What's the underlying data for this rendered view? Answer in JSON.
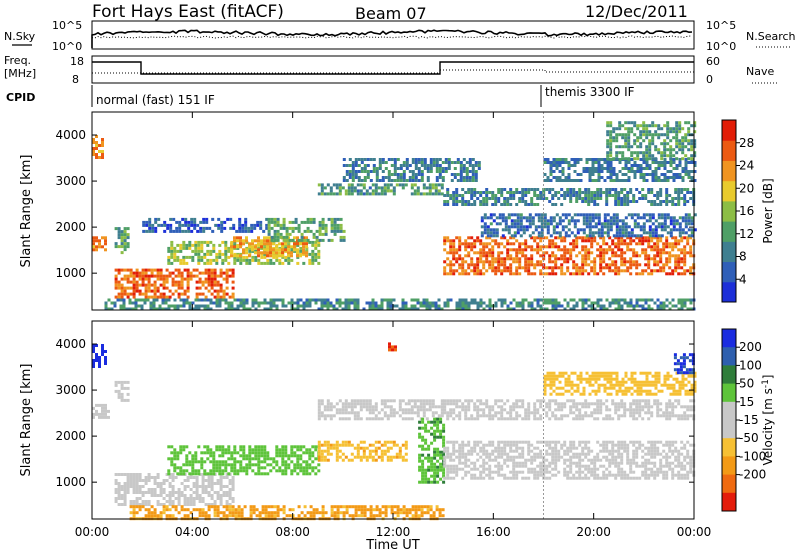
{
  "header": {
    "station": "Fort Hays East (fitACF)",
    "beam": "Beam 07",
    "date": "12/Dec/2011"
  },
  "top_panels": {
    "noise": {
      "left_label": "N.Sky",
      "right_label": "N.Search",
      "tick_top": "10^5",
      "tick_bottom": "10^0"
    },
    "freq": {
      "left_label_line1": "Freq.",
      "left_label_line2": "[MHz]",
      "left_tick_top": "18",
      "left_tick_bottom": "8",
      "right_label": "Nave",
      "right_tick_top": "60",
      "right_tick_bottom": "0"
    },
    "cpid": {
      "label": "CPID",
      "modes": [
        "normal (fast) 151 IF",
        "themis 3300 IF"
      ]
    }
  },
  "x_axis": {
    "title": "Time UT",
    "ticks": [
      "00:00",
      "04:00",
      "08:00",
      "12:00",
      "16:00",
      "20:00",
      "00:00"
    ]
  },
  "colors": {
    "power_scale": [
      "#1c2fd8",
      "#2f5fb8",
      "#3f7f90",
      "#4f9f66",
      "#8cbd45",
      "#e8ca2d",
      "#f09420",
      "#ec5a12",
      "#e21d07"
    ],
    "velocity_scale": [
      "#1a2ce0",
      "#2e5fae",
      "#2f7d3a",
      "#5ec43a",
      "#c8c8c8",
      "#c8c8c8",
      "#f6c034",
      "#f39a16",
      "#ef6a10",
      "#e41c0b"
    ]
  },
  "chart_data": [
    {
      "type": "heatmap",
      "title": "",
      "xlabel": "Time UT",
      "ylabel": "Slant Range [km]",
      "xlim": [
        0,
        24
      ],
      "ylim": [
        200,
        4500
      ],
      "yticks": [
        1000,
        2000,
        3000,
        4000
      ],
      "colorbar": {
        "label": "Power [dB]",
        "ticks": [
          4,
          8,
          12,
          16,
          20,
          24,
          28
        ],
        "range": [
          0,
          32
        ]
      },
      "bands": [
        {
          "t0": 0.0,
          "t1": 0.4,
          "r0": 3500,
          "r1": 4000,
          "v": 24
        },
        {
          "t0": 0.0,
          "t1": 0.5,
          "r0": 1500,
          "r1": 1800,
          "v": 24
        },
        {
          "t0": 0.9,
          "t1": 1.4,
          "r0": 1400,
          "r1": 2000,
          "v": 12
        },
        {
          "t0": 0.9,
          "t1": 5.6,
          "r0": 500,
          "r1": 1100,
          "v": 26
        },
        {
          "t0": 2.0,
          "t1": 7.0,
          "r0": 1900,
          "r1": 2200,
          "v": 6
        },
        {
          "t0": 3.0,
          "t1": 9.0,
          "r0": 1200,
          "r1": 1700,
          "v": 16
        },
        {
          "t0": 5.5,
          "t1": 8.5,
          "r0": 1400,
          "r1": 1800,
          "v": 22
        },
        {
          "t0": 7.0,
          "t1": 10.0,
          "r0": 1700,
          "r1": 2200,
          "v": 13
        },
        {
          "t0": 9.0,
          "t1": 14.0,
          "r0": 2700,
          "r1": 2950,
          "v": 11
        },
        {
          "t0": 10.0,
          "t1": 15.5,
          "r0": 3000,
          "r1": 3500,
          "v": 9
        },
        {
          "t0": 14.0,
          "t1": 24.0,
          "r0": 1000,
          "r1": 1800,
          "v": 26
        },
        {
          "t0": 14.0,
          "t1": 24.0,
          "r0": 2500,
          "r1": 2850,
          "v": 9
        },
        {
          "t0": 15.5,
          "t1": 24.0,
          "r0": 1800,
          "r1": 2300,
          "v": 7
        },
        {
          "t0": 18.0,
          "t1": 24.0,
          "r0": 3000,
          "r1": 3500,
          "v": 8
        },
        {
          "t0": 20.5,
          "t1": 24.0,
          "r0": 3500,
          "r1": 4300,
          "v": 12
        },
        {
          "t0": 0.5,
          "t1": 24.0,
          "r0": 200,
          "r1": 450,
          "v": 10
        }
      ]
    },
    {
      "type": "heatmap",
      "title": "",
      "xlabel": "Time UT",
      "ylabel": "Slant Range [km]",
      "xlim": [
        0,
        24
      ],
      "ylim": [
        200,
        4500
      ],
      "yticks": [
        1000,
        2000,
        3000,
        4000
      ],
      "colorbar": {
        "label": "Velocity [m s^-1]",
        "ticks": [
          200,
          100,
          50,
          15,
          -15,
          -50,
          -100,
          -200
        ]
      },
      "bands": [
        {
          "t0": 0.0,
          "t1": 0.5,
          "r0": 3500,
          "r1": 4000,
          "v": 220
        },
        {
          "t0": 0.0,
          "t1": 0.6,
          "r0": 2400,
          "r1": 2700,
          "v": 0
        },
        {
          "t0": 0.9,
          "t1": 1.4,
          "r0": 2800,
          "r1": 3200,
          "v": 0
        },
        {
          "t0": 0.9,
          "t1": 5.6,
          "r0": 500,
          "r1": 1200,
          "v": 0
        },
        {
          "t0": 3.0,
          "t1": 9.0,
          "r0": 1200,
          "r1": 1800,
          "v": 35
        },
        {
          "t0": 9.0,
          "t1": 12.5,
          "r0": 1500,
          "r1": 1900,
          "v": -40
        },
        {
          "t0": 9.0,
          "t1": 14.0,
          "r0": 2400,
          "r1": 2800,
          "v": 0
        },
        {
          "t0": 13.0,
          "t1": 14.0,
          "r0": 1000,
          "r1": 2400,
          "v": 40
        },
        {
          "t0": 14.0,
          "t1": 24.0,
          "r0": 1100,
          "r1": 1900,
          "v": 0
        },
        {
          "t0": 14.0,
          "t1": 24.0,
          "r0": 2400,
          "r1": 2800,
          "v": 0
        },
        {
          "t0": 18.0,
          "t1": 24.0,
          "r0": 2900,
          "r1": 3400,
          "v": -30
        },
        {
          "t0": 23.2,
          "t1": 24.0,
          "r0": 3400,
          "r1": 3800,
          "v": 200
        },
        {
          "t0": 11.8,
          "t1": 12.1,
          "r0": 3900,
          "r1": 4100,
          "v": -200
        },
        {
          "t0": 1.5,
          "t1": 14.0,
          "r0": 200,
          "r1": 500,
          "v": -60
        }
      ]
    }
  ]
}
